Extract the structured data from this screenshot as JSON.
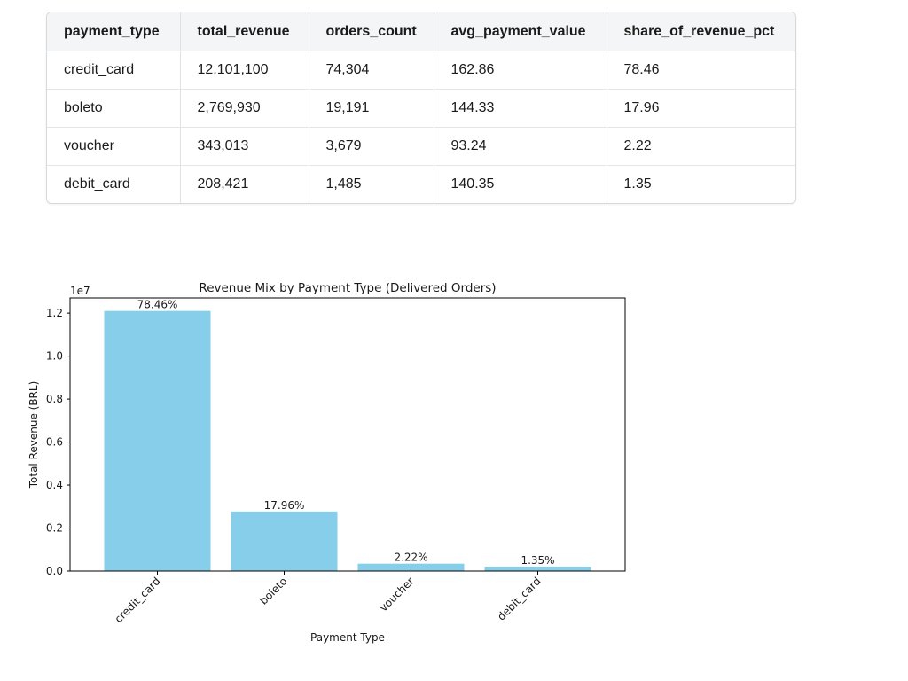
{
  "table": {
    "columns": [
      "payment_type",
      "total_revenue",
      "orders_count",
      "avg_payment_value",
      "share_of_revenue_pct"
    ],
    "rows": [
      [
        "credit_card",
        "12,101,100",
        "74,304",
        "162.86",
        "78.46"
      ],
      [
        "boleto",
        "2,769,930",
        "19,191",
        "144.33",
        "17.96"
      ],
      [
        "voucher",
        "343,013",
        "3,679",
        "93.24",
        "2.22"
      ],
      [
        "debit_card",
        "208,421",
        "1,485",
        "140.35",
        "1.35"
      ]
    ]
  },
  "chart_data": {
    "type": "bar",
    "title": "Revenue Mix by Payment Type (Delivered Orders)",
    "xlabel": "Payment Type",
    "ylabel": "Total Revenue (BRL)",
    "offset_label": "1e7",
    "scale": 10000000,
    "categories": [
      "credit_card",
      "boleto",
      "voucher",
      "debit_card"
    ],
    "values": [
      12101100,
      2769930,
      343013,
      208421
    ],
    "data_labels": [
      "78.46%",
      "17.96%",
      "2.22%",
      "1.35%"
    ],
    "ylim": [
      0,
      12706155
    ],
    "yticks": [
      0.0,
      0.2,
      0.4,
      0.6,
      0.8,
      1.0,
      1.2
    ],
    "ytick_labels": [
      "0.0",
      "0.2",
      "0.4",
      "0.6",
      "0.8",
      "1.0",
      "1.2"
    ],
    "bar_color": "#87ceeb",
    "grid": false,
    "legend": "none"
  }
}
